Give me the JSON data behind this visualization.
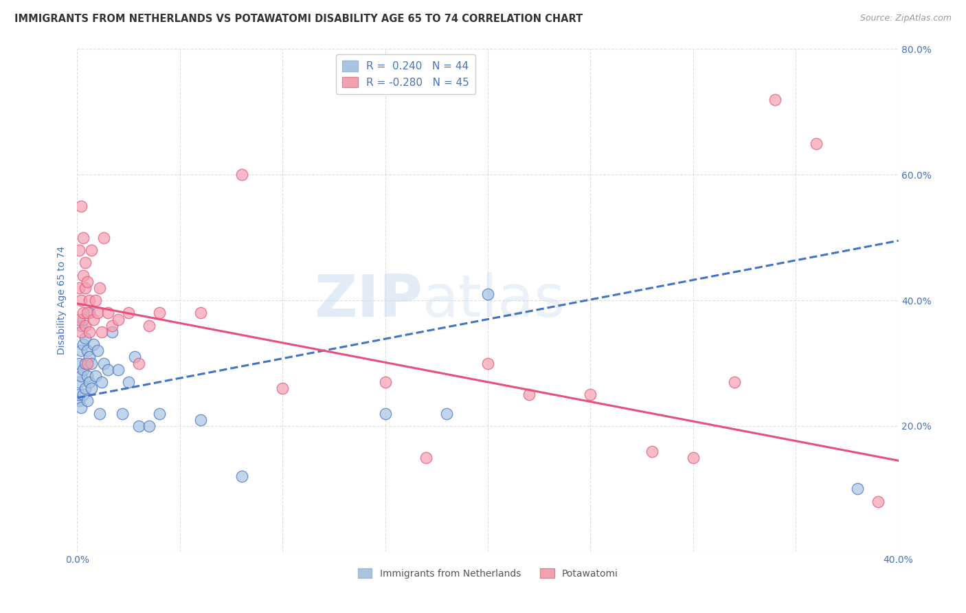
{
  "title": "IMMIGRANTS FROM NETHERLANDS VS POTAWATOMI DISABILITY AGE 65 TO 74 CORRELATION CHART",
  "source": "Source: ZipAtlas.com",
  "ylabel": "Disability Age 65 to 74",
  "xlim": [
    0.0,
    0.4
  ],
  "ylim": [
    0.0,
    0.8
  ],
  "watermark": "ZIPatlas",
  "legend_blue_label": "R =  0.240   N = 44",
  "legend_pink_label": "R = -0.280   N = 45",
  "legend_bottom_blue": "Immigrants from Netherlands",
  "legend_bottom_pink": "Potawatomi",
  "blue_color": "#a8c4e0",
  "pink_color": "#f4a0b0",
  "blue_line_color": "#4472c4",
  "pink_line_color": "#e8507a",
  "background_color": "#ffffff",
  "grid_color": "#dddddd",
  "title_color": "#333333",
  "axis_label_color": "#4472c4",
  "blue_trend_x": [
    0.0,
    0.4
  ],
  "blue_trend_y": [
    0.245,
    0.495
  ],
  "pink_trend_x": [
    0.0,
    0.4
  ],
  "pink_trend_y": [
    0.395,
    0.145
  ],
  "blue_scatter_x": [
    0.001,
    0.001,
    0.001,
    0.001,
    0.002,
    0.002,
    0.002,
    0.002,
    0.003,
    0.003,
    0.003,
    0.003,
    0.004,
    0.004,
    0.004,
    0.005,
    0.005,
    0.005,
    0.006,
    0.006,
    0.006,
    0.007,
    0.007,
    0.008,
    0.009,
    0.01,
    0.011,
    0.012,
    0.013,
    0.015,
    0.017,
    0.02,
    0.022,
    0.025,
    0.028,
    0.03,
    0.035,
    0.04,
    0.06,
    0.08,
    0.15,
    0.18,
    0.2,
    0.38
  ],
  "blue_scatter_y": [
    0.24,
    0.27,
    0.3,
    0.25,
    0.23,
    0.28,
    0.32,
    0.36,
    0.25,
    0.29,
    0.33,
    0.37,
    0.26,
    0.3,
    0.34,
    0.24,
    0.28,
    0.32,
    0.27,
    0.31,
    0.38,
    0.26,
    0.3,
    0.33,
    0.28,
    0.32,
    0.22,
    0.27,
    0.3,
    0.29,
    0.35,
    0.29,
    0.22,
    0.27,
    0.31,
    0.2,
    0.2,
    0.22,
    0.21,
    0.12,
    0.22,
    0.22,
    0.41,
    0.1
  ],
  "pink_scatter_x": [
    0.001,
    0.001,
    0.001,
    0.002,
    0.002,
    0.002,
    0.003,
    0.003,
    0.003,
    0.004,
    0.004,
    0.004,
    0.005,
    0.005,
    0.005,
    0.006,
    0.006,
    0.007,
    0.008,
    0.009,
    0.01,
    0.011,
    0.012,
    0.013,
    0.015,
    0.017,
    0.02,
    0.025,
    0.03,
    0.035,
    0.04,
    0.06,
    0.08,
    0.1,
    0.15,
    0.17,
    0.2,
    0.22,
    0.25,
    0.28,
    0.3,
    0.32,
    0.34,
    0.36,
    0.39
  ],
  "pink_scatter_y": [
    0.37,
    0.42,
    0.48,
    0.35,
    0.4,
    0.55,
    0.38,
    0.44,
    0.5,
    0.36,
    0.42,
    0.46,
    0.3,
    0.38,
    0.43,
    0.35,
    0.4,
    0.48,
    0.37,
    0.4,
    0.38,
    0.42,
    0.35,
    0.5,
    0.38,
    0.36,
    0.37,
    0.38,
    0.3,
    0.36,
    0.38,
    0.38,
    0.6,
    0.26,
    0.27,
    0.15,
    0.3,
    0.25,
    0.25,
    0.16,
    0.15,
    0.27,
    0.72,
    0.65,
    0.08
  ]
}
